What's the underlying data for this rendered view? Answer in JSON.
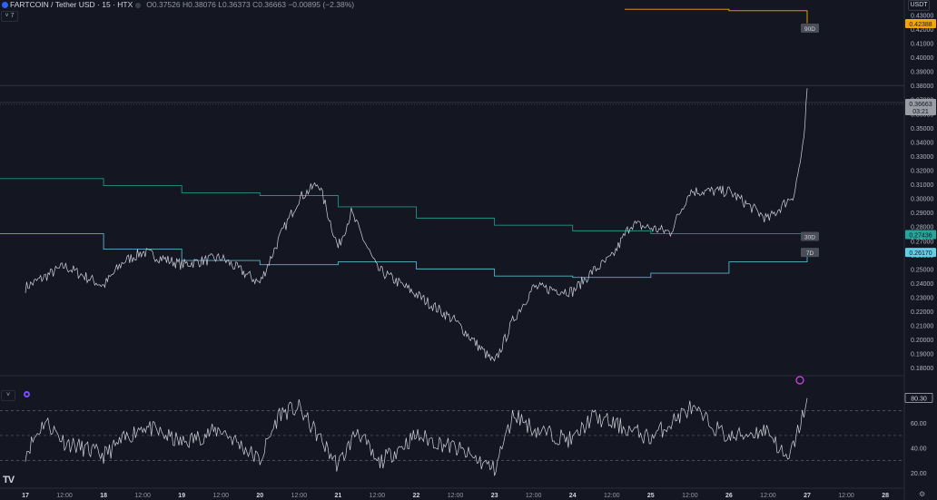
{
  "header": {
    "symbol": "FARTCOIN / Tether USD · 15 · HTX",
    "open_label": "O",
    "open": "0.37526",
    "high_label": "H",
    "high": "0.38076",
    "low_label": "L",
    "low": "0.36373",
    "close_label": "C",
    "close": "0.36663",
    "change": "−0.00895 (−2.38%)",
    "indicator_count": "7"
  },
  "price_axis": {
    "currency": "USDT",
    "ticks": [
      "0.43000",
      "0.42000",
      "0.41000",
      "0.40000",
      "0.39000",
      "0.38000",
      "0.37000",
      "0.36000",
      "0.35000",
      "0.34000",
      "0.33000",
      "0.32000",
      "0.31000",
      "0.30000",
      "0.29000",
      "0.28000",
      "0.27000",
      "0.26000",
      "0.25000",
      "0.24000",
      "0.23000",
      "0.22000",
      "0.21000",
      "0.20000",
      "0.19000",
      "0.18000"
    ]
  },
  "time_axis": {
    "labels": [
      "17",
      "12:00",
      "18",
      "12:00",
      "19",
      "12:00",
      "20",
      "12:00",
      "21",
      "12:00",
      "22",
      "12:00",
      "23",
      "12:00",
      "24",
      "12:00",
      "25",
      "12:00",
      "26",
      "12:00",
      "27",
      "12:00",
      "28"
    ]
  },
  "rsi_axis": {
    "ticks": [
      "60.00",
      "40.00",
      "20.00"
    ],
    "value": "80.30"
  },
  "labels": {
    "ma90": "90D",
    "ma30": "30D",
    "ma7": "7D",
    "price_orange": "0.42388",
    "price_green": "0.27436",
    "price_cyan": "0.26170",
    "price_current": "0.36663",
    "countdown": "03:21"
  },
  "colors": {
    "background": "#141722",
    "price_line": "#d1d4dc",
    "ma90": "#f7a600",
    "ma30": "#26a69a",
    "ma7": "#5fd0e6",
    "rsi_overbought": "#26a69a",
    "rsi_oversold": "#ef5350"
  },
  "chart_data": {
    "type": "line",
    "price": {
      "series_daily": [
        {
          "x": "17 00:00",
          "y": 0.237
        },
        {
          "x": "17 12:00",
          "y": 0.252
        },
        {
          "x": "18 00:00",
          "y": 0.238
        },
        {
          "x": "18 06:00",
          "y": 0.255
        },
        {
          "x": "18 12:00",
          "y": 0.262
        },
        {
          "x": "19 00:00",
          "y": 0.253
        },
        {
          "x": "19 12:00",
          "y": 0.258
        },
        {
          "x": "20 00:00",
          "y": 0.24
        },
        {
          "x": "20 06:00",
          "y": 0.272
        },
        {
          "x": "20 12:00",
          "y": 0.3
        },
        {
          "x": "20 18:00",
          "y": 0.311
        },
        {
          "x": "21 00:00",
          "y": 0.265
        },
        {
          "x": "21 04:00",
          "y": 0.29
        },
        {
          "x": "21 12:00",
          "y": 0.25
        },
        {
          "x": "22 00:00",
          "y": 0.232
        },
        {
          "x": "22 12:00",
          "y": 0.213
        },
        {
          "x": "23 00:00",
          "y": 0.183
        },
        {
          "x": "23 06:00",
          "y": 0.215
        },
        {
          "x": "23 12:00",
          "y": 0.237
        },
        {
          "x": "24 00:00",
          "y": 0.234
        },
        {
          "x": "24 06:00",
          "y": 0.248
        },
        {
          "x": "24 12:00",
          "y": 0.258
        },
        {
          "x": "24 18:00",
          "y": 0.282
        },
        {
          "x": "25 06:00",
          "y": 0.276
        },
        {
          "x": "25 12:00",
          "y": 0.305
        },
        {
          "x": "26 00:00",
          "y": 0.305
        },
        {
          "x": "26 12:00",
          "y": 0.285
        },
        {
          "x": "26 20:00",
          "y": 0.303
        },
        {
          "x": "26 23:00",
          "y": 0.34
        },
        {
          "x": "27 00:00",
          "y": 0.378
        }
      ],
      "ma90": [
        {
          "x": "25 00:00",
          "y": 0.434
        },
        {
          "x": "25 12:00",
          "y": 0.434
        },
        {
          "x": "26 00:00",
          "y": 0.433
        },
        {
          "x": "26 12:00",
          "y": 0.433
        },
        {
          "x": "27 00:00",
          "y": 0.424
        }
      ],
      "ma30": [
        {
          "x": "17 00:00",
          "y": 0.314
        },
        {
          "x": "18 00:00",
          "y": 0.309
        },
        {
          "x": "19 00:00",
          "y": 0.304
        },
        {
          "x": "20 00:00",
          "y": 0.302
        },
        {
          "x": "21 00:00",
          "y": 0.294
        },
        {
          "x": "22 00:00",
          "y": 0.286
        },
        {
          "x": "23 00:00",
          "y": 0.281
        },
        {
          "x": "24 00:00",
          "y": 0.277
        },
        {
          "x": "25 00:00",
          "y": 0.275
        },
        {
          "x": "26 00:00",
          "y": 0.275
        },
        {
          "x": "27 00:00",
          "y": 0.274
        }
      ],
      "ma7": [
        {
          "x": "17 00:00",
          "y": 0.275
        },
        {
          "x": "18 00:00",
          "y": 0.264
        },
        {
          "x": "19 00:00",
          "y": 0.256
        },
        {
          "x": "20 00:00",
          "y": 0.253
        },
        {
          "x": "21 00:00",
          "y": 0.255
        },
        {
          "x": "22 00:00",
          "y": 0.25
        },
        {
          "x": "23 00:00",
          "y": 0.245
        },
        {
          "x": "24 00:00",
          "y": 0.244
        },
        {
          "x": "25 00:00",
          "y": 0.247
        },
        {
          "x": "26 00:00",
          "y": 0.255
        },
        {
          "x": "27 00:00",
          "y": 0.262
        }
      ],
      "ylim": [
        0.175,
        0.438
      ],
      "reference_lines": [
        0.38,
        0.368
      ]
    },
    "rsi": {
      "series": [
        {
          "x": "17 00:00",
          "y": 36
        },
        {
          "x": "17 06:00",
          "y": 62
        },
        {
          "x": "17 12:00",
          "y": 45
        },
        {
          "x": "18 00:00",
          "y": 34
        },
        {
          "x": "18 12:00",
          "y": 58
        },
        {
          "x": "19 00:00",
          "y": 44
        },
        {
          "x": "19 12:00",
          "y": 55
        },
        {
          "x": "20 00:00",
          "y": 30
        },
        {
          "x": "20 06:00",
          "y": 68
        },
        {
          "x": "20 12:00",
          "y": 72
        },
        {
          "x": "21 00:00",
          "y": 26
        },
        {
          "x": "21 06:00",
          "y": 55
        },
        {
          "x": "21 12:00",
          "y": 27
        },
        {
          "x": "22 00:00",
          "y": 50
        },
        {
          "x": "22 12:00",
          "y": 40
        },
        {
          "x": "23 00:00",
          "y": 23
        },
        {
          "x": "23 06:00",
          "y": 68
        },
        {
          "x": "23 12:00",
          "y": 55
        },
        {
          "x": "24 00:00",
          "y": 46
        },
        {
          "x": "24 06:00",
          "y": 65
        },
        {
          "x": "24 12:00",
          "y": 60
        },
        {
          "x": "25 00:00",
          "y": 48
        },
        {
          "x": "25 12:00",
          "y": 72
        },
        {
          "x": "26 00:00",
          "y": 48
        },
        {
          "x": "26 12:00",
          "y": 55
        },
        {
          "x": "26 18:00",
          "y": 28
        },
        {
          "x": "26 22:00",
          "y": 60
        },
        {
          "x": "27 00:00",
          "y": 80
        }
      ],
      "ylim": [
        15,
        90
      ],
      "bands": [
        70,
        50,
        30
      ]
    }
  }
}
